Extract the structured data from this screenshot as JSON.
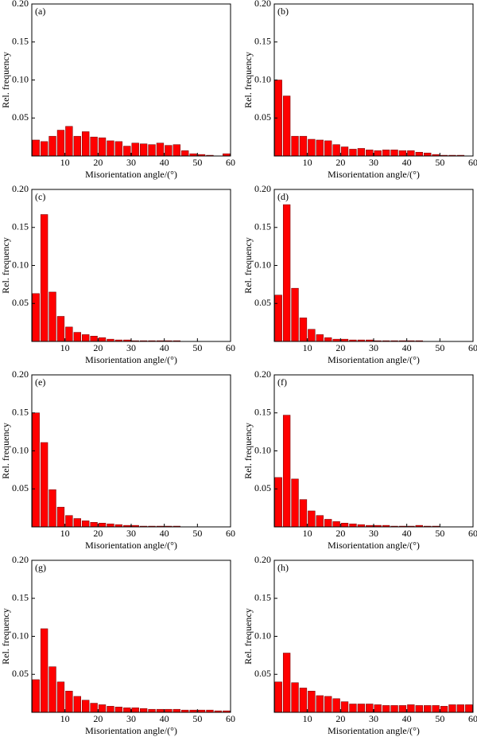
{
  "chart_data": [
    {
      "type": "histogram",
      "annotation": "(a)",
      "xlabel": "Misorientation angle/(°)",
      "ylabel": "Rel. frequency",
      "color": "#ff0000",
      "bins": [
        0,
        2.5,
        5,
        7.5,
        10,
        12.5,
        15,
        17.5,
        20,
        22.5,
        25,
        27.5,
        30,
        32.5,
        35,
        37.5,
        40,
        42.5,
        45,
        47.5,
        50,
        52.5,
        55,
        57.5,
        60
      ],
      "values": [
        0.021,
        0.019,
        0.026,
        0.034,
        0.039,
        0.026,
        0.032,
        0.025,
        0.024,
        0.02,
        0.019,
        0.013,
        0.017,
        0.016,
        0.015,
        0.017,
        0.014,
        0.015,
        0.007,
        0.003,
        0.002,
        0.001,
        0,
        0.003
      ],
      "xlim": [
        0,
        60
      ],
      "xticks": [
        10,
        20,
        30,
        40,
        50,
        60
      ],
      "ylim": [
        0,
        0.2
      ],
      "yticks": [
        0.05,
        {
          "value": 0.1,
          "label": "0.10"
        },
        0.15,
        {
          "value": 0.2,
          "label": "0.20"
        }
      ]
    },
    {
      "type": "histogram",
      "annotation": "(b)",
      "xlabel": "Misorientation angle/(°)",
      "ylabel": "Rel. frequency",
      "color": "#ff0000",
      "bins": [
        0,
        2.5,
        5,
        7.5,
        10,
        12.5,
        15,
        17.5,
        20,
        22.5,
        25,
        27.5,
        30,
        32.5,
        35,
        37.5,
        40,
        42.5,
        45,
        47.5,
        50,
        52.5,
        55,
        57.5,
        60
      ],
      "values": [
        0.1,
        0.079,
        0.026,
        0.026,
        0.022,
        0.021,
        0.02,
        0.015,
        0.012,
        0.009,
        0.01,
        0.008,
        0.007,
        0.008,
        0.008,
        0.007,
        0.007,
        0.005,
        0.004,
        0.002,
        0.001,
        0.001,
        0.001,
        0
      ],
      "xlim": [
        0,
        60
      ],
      "xticks": [
        10,
        20,
        30,
        40,
        50,
        60
      ],
      "ylim": [
        0,
        0.2
      ],
      "yticks": [
        0.05,
        {
          "value": 0.1,
          "label": "0.10"
        },
        0.15,
        {
          "value": 0.2,
          "label": "0.20"
        }
      ]
    },
    {
      "type": "histogram",
      "annotation": "(c)",
      "xlabel": "Misorientation angle/(°)",
      "ylabel": "Rel. frequency",
      "color": "#ff0000",
      "bins": [
        0,
        2.5,
        5,
        7.5,
        10,
        12.5,
        15,
        17.5,
        20,
        22.5,
        25,
        27.5,
        30,
        32.5,
        35,
        37.5,
        40,
        42.5,
        45,
        47.5,
        50,
        52.5,
        55,
        57.5,
        60
      ],
      "values": [
        0.063,
        0.167,
        0.065,
        0.033,
        0.019,
        0.012,
        0.009,
        0.007,
        0.005,
        0.003,
        0.002,
        0.002,
        0.001,
        0.001,
        0.001,
        0.001,
        0.001,
        0.001,
        0,
        0,
        0,
        0,
        0,
        0
      ],
      "xlim": [
        0,
        60
      ],
      "xticks": [
        10,
        20,
        30,
        40,
        50,
        60
      ],
      "ylim": [
        0,
        0.2
      ],
      "yticks": [
        0.05,
        {
          "value": 0.1,
          "label": "0.10"
        },
        0.15,
        {
          "value": 0.2,
          "label": "0.20"
        }
      ]
    },
    {
      "type": "histogram",
      "annotation": "(d)",
      "xlabel": "Misorientation angle/(°)",
      "ylabel": "Rel. frequency",
      "color": "#ff0000",
      "bins": [
        0,
        2.5,
        5,
        7.5,
        10,
        12.5,
        15,
        17.5,
        20,
        22.5,
        25,
        27.5,
        30,
        32.5,
        35,
        37.5,
        40,
        42.5,
        45,
        47.5,
        50,
        52.5,
        55,
        57.5,
        60
      ],
      "values": [
        0.061,
        0.18,
        0.07,
        0.031,
        0.016,
        0.009,
        0.005,
        0.003,
        0.003,
        0.002,
        0.002,
        0.002,
        0.001,
        0.001,
        0.001,
        0.001,
        0.001,
        0.001,
        0,
        0,
        0,
        0,
        0,
        0
      ],
      "xlim": [
        0,
        60
      ],
      "xticks": [
        10,
        20,
        30,
        40,
        50,
        60
      ],
      "ylim": [
        0,
        0.2
      ],
      "yticks": [
        0.05,
        {
          "value": 0.1,
          "label": "0.10"
        },
        0.15,
        {
          "value": 0.2,
          "label": "0.20"
        }
      ]
    },
    {
      "type": "histogram",
      "annotation": "(e)",
      "xlabel": "Misorientation angle/(°)",
      "ylabel": "Rel. frequency",
      "color": "#ff0000",
      "bins": [
        0,
        2.5,
        5,
        7.5,
        10,
        12.5,
        15,
        17.5,
        20,
        22.5,
        25,
        27.5,
        30,
        32.5,
        35,
        37.5,
        40,
        42.5,
        45,
        47.5,
        50,
        52.5,
        55,
        57.5,
        60
      ],
      "values": [
        0.15,
        0.111,
        0.049,
        0.026,
        0.015,
        0.011,
        0.008,
        0.006,
        0.005,
        0.004,
        0.003,
        0.002,
        0.002,
        0.001,
        0.001,
        0.001,
        0.001,
        0.001,
        0,
        0,
        0,
        0,
        0,
        0
      ],
      "xlim": [
        0,
        60
      ],
      "xticks": [
        10,
        20,
        30,
        40,
        50,
        60
      ],
      "ylim": [
        0,
        0.2
      ],
      "yticks": [
        0.05,
        {
          "value": 0.1,
          "label": "0.10"
        },
        0.15,
        {
          "value": 0.2,
          "label": "0.20"
        }
      ]
    },
    {
      "type": "histogram",
      "annotation": "(f)",
      "xlabel": "Misorientation angle/(°)",
      "ylabel": "Rel. frequency",
      "color": "#ff0000",
      "bins": [
        0,
        2.5,
        5,
        7.5,
        10,
        12.5,
        15,
        17.5,
        20,
        22.5,
        25,
        27.5,
        30,
        32.5,
        35,
        37.5,
        40,
        42.5,
        45,
        47.5,
        50,
        52.5,
        55,
        57.5,
        60
      ],
      "values": [
        0.065,
        0.147,
        0.063,
        0.036,
        0.021,
        0.015,
        0.01,
        0.007,
        0.005,
        0.004,
        0.003,
        0.002,
        0.002,
        0.002,
        0.001,
        0.001,
        0.001,
        0.002,
        0.001,
        0.001,
        0,
        0,
        0,
        0
      ],
      "xlim": [
        0,
        60
      ],
      "xticks": [
        10,
        20,
        30,
        40,
        50,
        60
      ],
      "ylim": [
        0,
        0.2
      ],
      "yticks": [
        0.05,
        {
          "value": 0.1,
          "label": "0.10"
        },
        0.15,
        {
          "value": 0.2,
          "label": "0.20"
        }
      ]
    },
    {
      "type": "histogram",
      "annotation": "(g)",
      "xlabel": "Misorientation angle/(°)",
      "ylabel": "Rel. frequency",
      "color": "#ff0000",
      "bins": [
        0,
        2.5,
        5,
        7.5,
        10,
        12.5,
        15,
        17.5,
        20,
        22.5,
        25,
        27.5,
        30,
        32.5,
        35,
        37.5,
        40,
        42.5,
        45,
        47.5,
        50,
        52.5,
        55,
        57.5,
        60
      ],
      "values": [
        0.043,
        0.11,
        0.06,
        0.04,
        0.028,
        0.021,
        0.016,
        0.012,
        0.01,
        0.008,
        0.007,
        0.006,
        0.006,
        0.005,
        0.004,
        0.004,
        0.004,
        0.004,
        0.003,
        0.003,
        0.003,
        0.003,
        0.002,
        0.002
      ],
      "xlim": [
        0,
        60
      ],
      "xticks": [
        10,
        20,
        30,
        40,
        50,
        60
      ],
      "ylim": [
        0,
        0.2
      ],
      "yticks": [
        0.05,
        {
          "value": 0.1,
          "label": "0.10"
        },
        0.15,
        {
          "value": 0.2,
          "label": "0.20"
        }
      ]
    },
    {
      "type": "histogram",
      "annotation": "(h)",
      "xlabel": "Misorientation angle/(°)",
      "ylabel": "Rel. frequency",
      "color": "#ff0000",
      "bins": [
        0,
        2.5,
        5,
        7.5,
        10,
        12.5,
        15,
        17.5,
        20,
        22.5,
        25,
        27.5,
        30,
        32.5,
        35,
        37.5,
        40,
        42.5,
        45,
        47.5,
        50,
        52.5,
        55,
        57.5,
        60
      ],
      "values": [
        0.04,
        0.078,
        0.039,
        0.032,
        0.028,
        0.022,
        0.021,
        0.018,
        0.014,
        0.011,
        0.011,
        0.011,
        0.01,
        0.009,
        0.009,
        0.009,
        0.01,
        0.009,
        0.009,
        0.009,
        0.008,
        0.01,
        0.01,
        0.01
      ],
      "xlim": [
        0,
        60
      ],
      "xticks": [
        10,
        20,
        30,
        40,
        50,
        60
      ],
      "ylim": [
        0,
        0.2
      ],
      "yticks": [
        0.05,
        {
          "value": 0.1,
          "label": "0.10"
        },
        0.15,
        {
          "value": 0.2,
          "label": "0.20"
        }
      ]
    }
  ]
}
